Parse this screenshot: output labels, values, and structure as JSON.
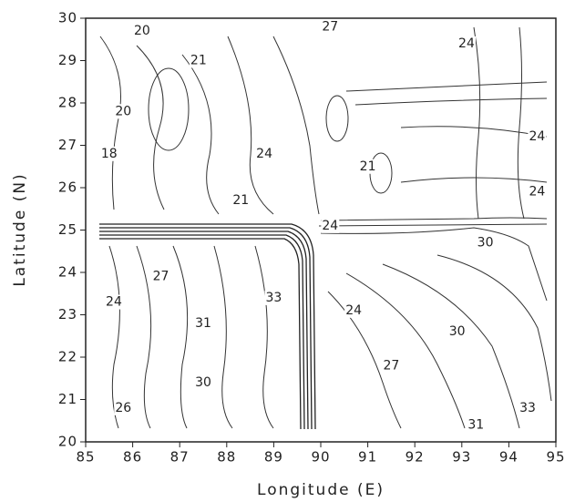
{
  "chart_data": {
    "type": "contour",
    "xlabel": "Longitude (E)",
    "ylabel": "Latitude (N)",
    "xlim": [
      85,
      95
    ],
    "ylim": [
      20,
      30
    ],
    "xticks": [
      85,
      86,
      87,
      88,
      89,
      90,
      91,
      92,
      93,
      94,
      95
    ],
    "yticks": [
      20,
      21,
      22,
      23,
      24,
      25,
      26,
      27,
      28,
      29,
      30
    ],
    "contour_labels": [
      {
        "value": 20,
        "lon": 86.2,
        "lat": 29.7
      },
      {
        "value": 21,
        "lon": 87.4,
        "lat": 29.0
      },
      {
        "value": 20,
        "lon": 85.8,
        "lat": 27.8
      },
      {
        "value": 18,
        "lon": 85.5,
        "lat": 26.8
      },
      {
        "value": 27,
        "lon": 90.2,
        "lat": 29.8
      },
      {
        "value": 24,
        "lon": 93.1,
        "lat": 29.4
      },
      {
        "value": 24,
        "lon": 88.8,
        "lat": 26.8
      },
      {
        "value": 21,
        "lon": 91.0,
        "lat": 26.5
      },
      {
        "value": 24,
        "lon": 94.6,
        "lat": 27.2
      },
      {
        "value": 24,
        "lon": 94.6,
        "lat": 25.9
      },
      {
        "value": 21,
        "lon": 88.3,
        "lat": 25.7
      },
      {
        "value": 24,
        "lon": 90.2,
        "lat": 25.1
      },
      {
        "value": 30,
        "lon": 93.5,
        "lat": 24.7
      },
      {
        "value": 27,
        "lon": 86.6,
        "lat": 23.9
      },
      {
        "value": 24,
        "lon": 85.6,
        "lat": 23.3
      },
      {
        "value": 33,
        "lon": 89.0,
        "lat": 23.4
      },
      {
        "value": 24,
        "lon": 90.7,
        "lat": 23.1
      },
      {
        "value": 31,
        "lon": 87.5,
        "lat": 22.8
      },
      {
        "value": 30,
        "lon": 92.9,
        "lat": 22.6
      },
      {
        "value": 27,
        "lon": 91.5,
        "lat": 21.8
      },
      {
        "value": 30,
        "lon": 87.5,
        "lat": 21.4
      },
      {
        "value": 26,
        "lon": 85.8,
        "lat": 20.8
      },
      {
        "value": 33,
        "lon": 94.4,
        "lat": 20.8
      },
      {
        "value": 31,
        "lon": 93.3,
        "lat": 20.4
      }
    ]
  }
}
